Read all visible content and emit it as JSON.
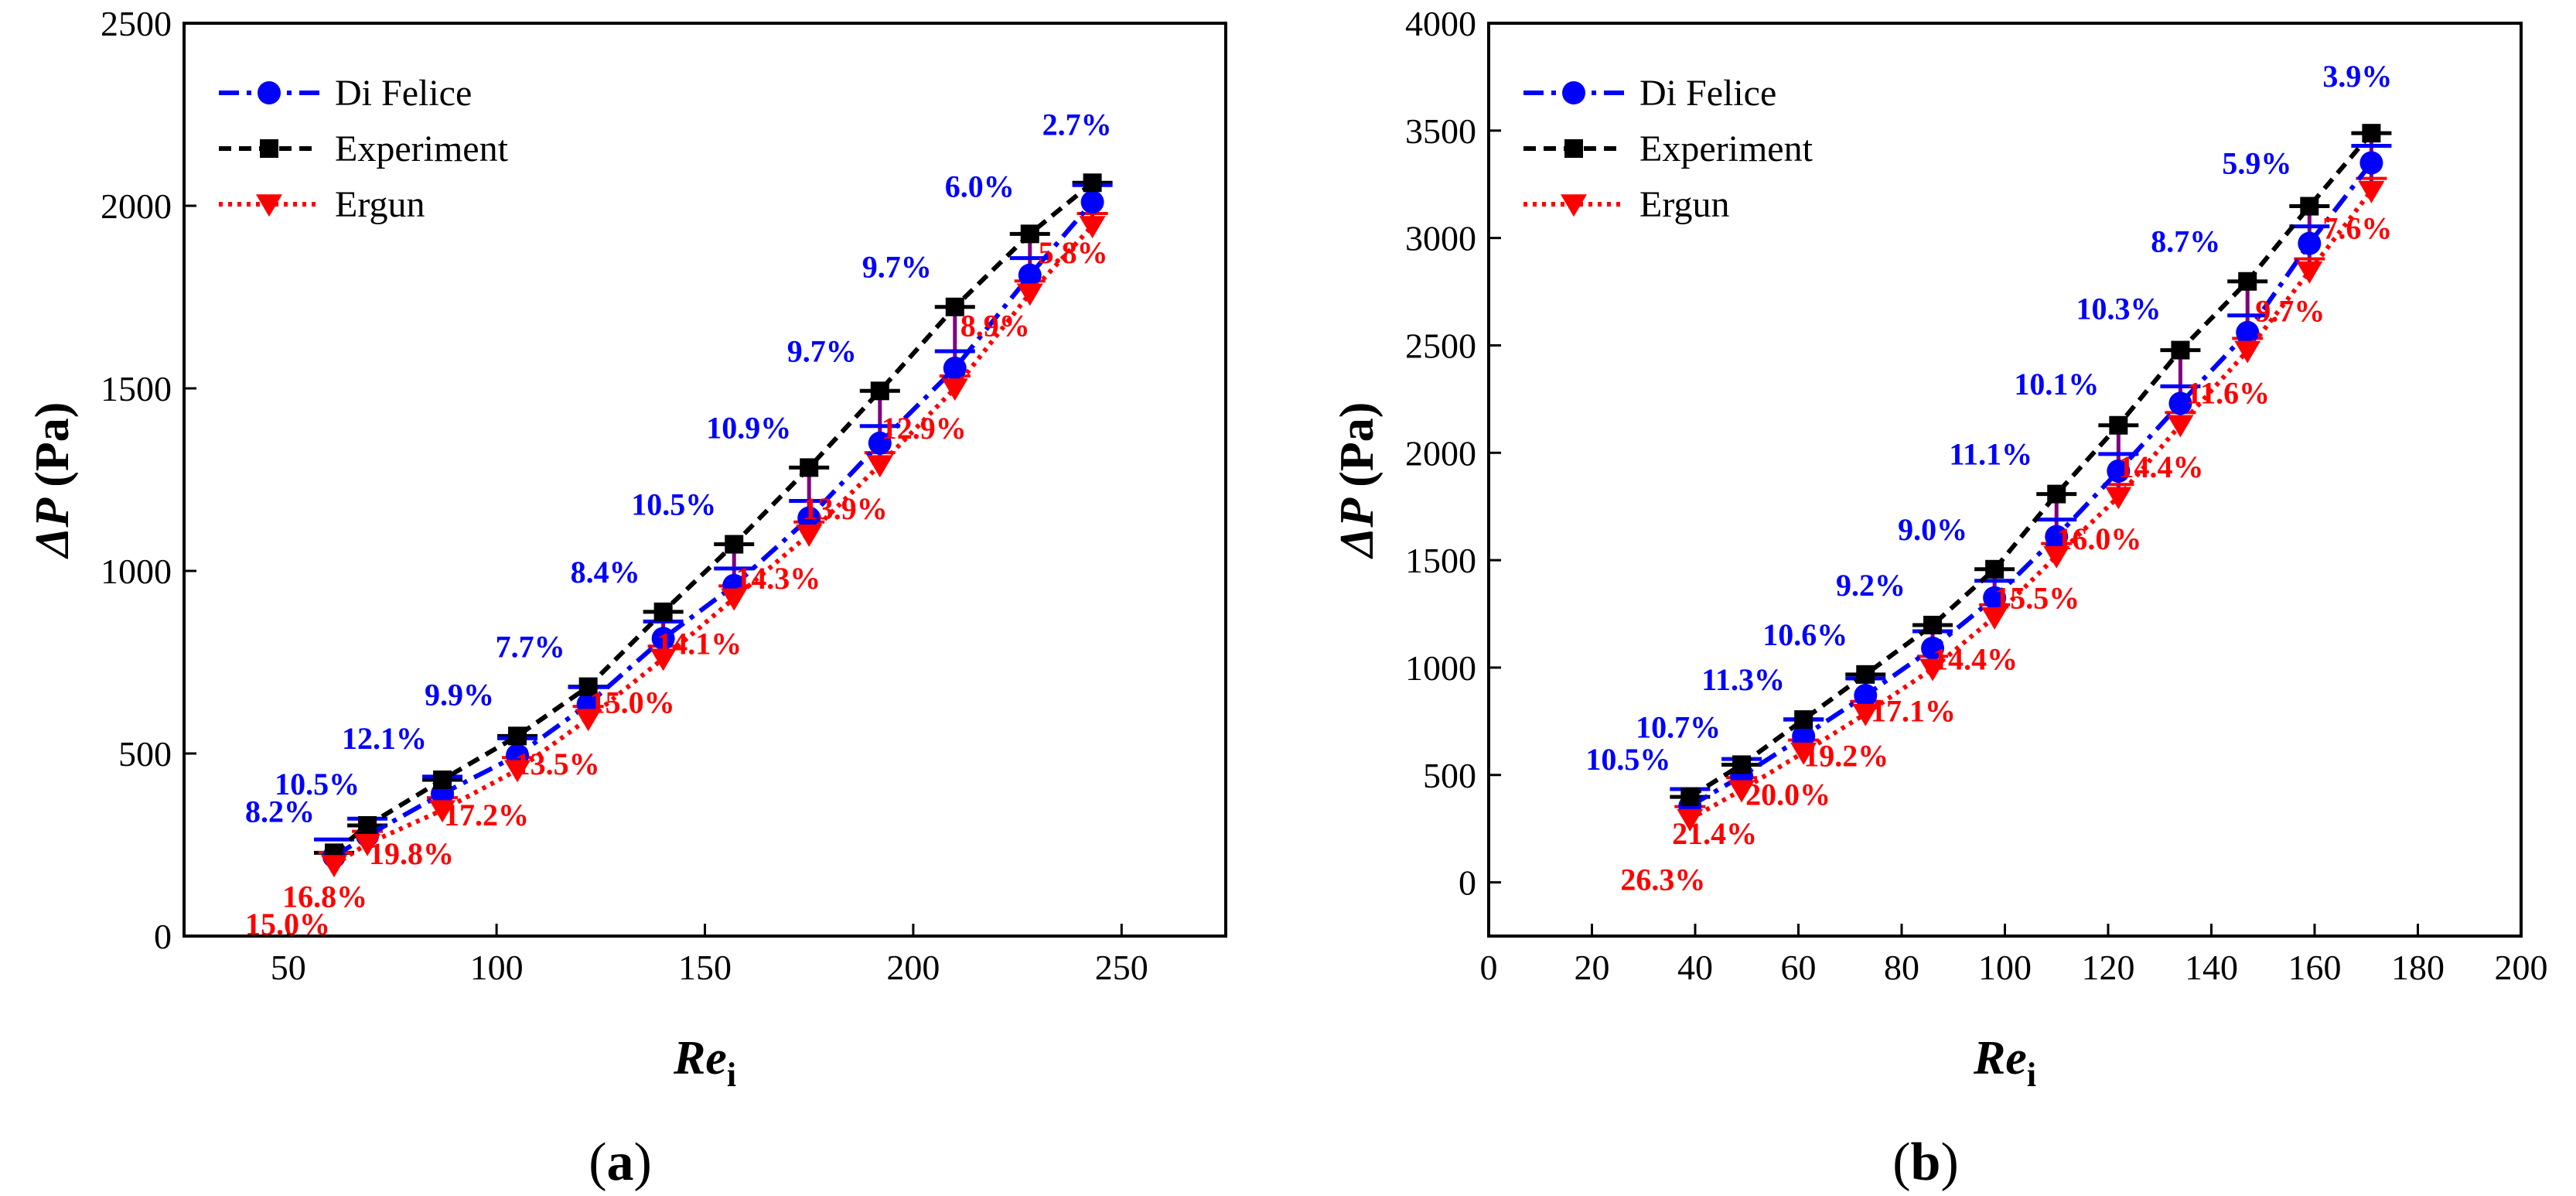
{
  "colors": {
    "di_felice": "#0000ff",
    "experiment": "#000000",
    "ergun": "#ff0000",
    "error_bar": "#800080",
    "error_cap_di": "#0000ff",
    "error_cap_exp": "#000000"
  },
  "chart_data": [
    {
      "type": "line",
      "panel": "a",
      "panel_label": "a",
      "xlabel_main": "Re",
      "xlabel_sub": "i",
      "ylabel_main": "ΔP",
      "ylabel_unit": "(Pa)",
      "xlim": [
        25,
        275
      ],
      "ylim": [
        0,
        2500
      ],
      "xticks": [
        50,
        100,
        150,
        200,
        250
      ],
      "yticks": [
        0,
        500,
        1000,
        1500,
        2000,
        2500
      ],
      "legend_position": "top-left",
      "x": [
        61,
        69,
        87,
        105,
        122,
        140,
        157,
        175,
        192,
        210,
        228,
        243
      ],
      "series": [
        {
          "name": "Di Felice",
          "values": [
            218,
            275,
            390,
            495,
            635,
            815,
            960,
            1145,
            1350,
            1555,
            1810,
            2010
          ]
        },
        {
          "name": "Experiment",
          "values": [
            228,
            303,
            428,
            548,
            683,
            888,
            1073,
            1283,
            1493,
            1723,
            1923,
            2063
          ]
        },
        {
          "name": "Ergun",
          "values": [
            195,
            253,
            345,
            455,
            595,
            760,
            925,
            1100,
            1290,
            1500,
            1760,
            1945
          ]
        }
      ],
      "di_felice_errors": [
        "8.2%",
        "10.5%",
        "12.1%",
        "9.9%",
        "7.7%",
        "8.4%",
        "10.5%",
        "10.9%",
        "9.7%",
        "9.7%",
        "6.0%",
        "2.7%"
      ],
      "ergun_errors": [
        "15.0%",
        "16.8%",
        "19.8%",
        "17.2%",
        "13.5%",
        "15.0%",
        "14.1%",
        "14.3%",
        "13.9%",
        "12.9%",
        "8.9%",
        "5.8%"
      ]
    },
    {
      "type": "line",
      "panel": "b",
      "panel_label": "b",
      "xlabel_main": "Re",
      "xlabel_sub": "i",
      "ylabel_main": "ΔP",
      "ylabel_unit": "(Pa)",
      "xlim": [
        0,
        200
      ],
      "ylim": [
        -250,
        4000
      ],
      "xticks": [
        0,
        20,
        40,
        60,
        80,
        100,
        120,
        140,
        160,
        180,
        200
      ],
      "yticks": [
        0,
        500,
        1000,
        1500,
        2000,
        2500,
        3000,
        3500,
        4000
      ],
      "legend_position": "top-left",
      "x": [
        39,
        49,
        61,
        73,
        86,
        98,
        110,
        122,
        134,
        147,
        159,
        171
      ],
      "series": [
        {
          "name": "Di Felice",
          "values": [
            355,
            495,
            680,
            870,
            1090,
            1325,
            1610,
            1915,
            2230,
            2560,
            2975,
            3350
          ]
        },
        {
          "name": "Experiment",
          "values": [
            398,
            548,
            758,
            968,
            1198,
            1458,
            1808,
            2128,
            2478,
            2798,
            3148,
            3488
          ]
        },
        {
          "name": "Ergun",
          "values": [
            295,
            430,
            605,
            785,
            995,
            1235,
            1520,
            1795,
            2130,
            2475,
            2845,
            3220
          ]
        }
      ],
      "di_felice_errors": [
        "10.5%",
        "10.7%",
        "11.3%",
        "10.6%",
        "9.2%",
        "9.0%",
        "11.1%",
        "10.1%",
        "10.3%",
        "8.7%",
        "5.9%",
        "3.9%"
      ],
      "ergun_errors": [
        "26.3%",
        "21.4%",
        "20.0%",
        "19.2%",
        "17.1%",
        "14.4%",
        "15.5%",
        "16.0%",
        "14.4%",
        "11.6%",
        "9.7%",
        "7.6%"
      ]
    }
  ]
}
